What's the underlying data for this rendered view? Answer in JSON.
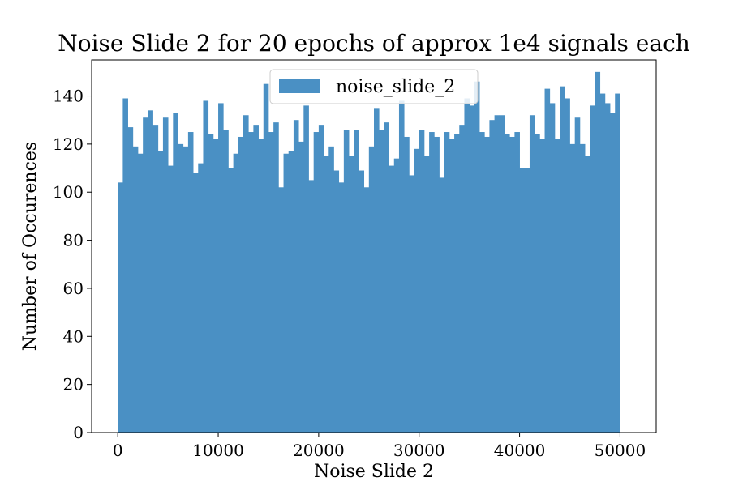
{
  "chart_data": {
    "type": "bar",
    "title": "Noise Slide 2 for 20 epochs of approx 1e4 signals each",
    "xlabel": "Noise Slide 2",
    "ylabel": "Number of Occurences",
    "xlim": [
      -2600,
      53600
    ],
    "ylim": [
      0,
      155
    ],
    "xticks": [
      0,
      10000,
      20000,
      30000,
      40000,
      50000
    ],
    "yticks": [
      0,
      20,
      40,
      60,
      80,
      100,
      120,
      140
    ],
    "legend": {
      "placement": "top-center",
      "entries": [
        "noise_slide_2"
      ]
    },
    "grid": false,
    "color": "#4a90c4",
    "series": [
      {
        "name": "noise_slide_2",
        "bin_start": 0,
        "bin_width": 500,
        "values": [
          104,
          139,
          127,
          119,
          116,
          131,
          134,
          128,
          117,
          131,
          111,
          133,
          120,
          119,
          125,
          108,
          112,
          138,
          124,
          122,
          137,
          126,
          110,
          116,
          123,
          132,
          125,
          128,
          122,
          145,
          125,
          129,
          102,
          116,
          117,
          130,
          121,
          136,
          105,
          125,
          128,
          115,
          119,
          109,
          104,
          126,
          115,
          126,
          109,
          102,
          119,
          135,
          126,
          129,
          111,
          114,
          138,
          123,
          107,
          118,
          126,
          115,
          125,
          123,
          106,
          125,
          122,
          124,
          128,
          139,
          136,
          146,
          125,
          123,
          130,
          132,
          132,
          124,
          123,
          125,
          110,
          110,
          132,
          124,
          122,
          143,
          137,
          122,
          144,
          139,
          120,
          131,
          120,
          115,
          136,
          150,
          141,
          137,
          133,
          141,
          0,
          0
        ]
      }
    ]
  }
}
